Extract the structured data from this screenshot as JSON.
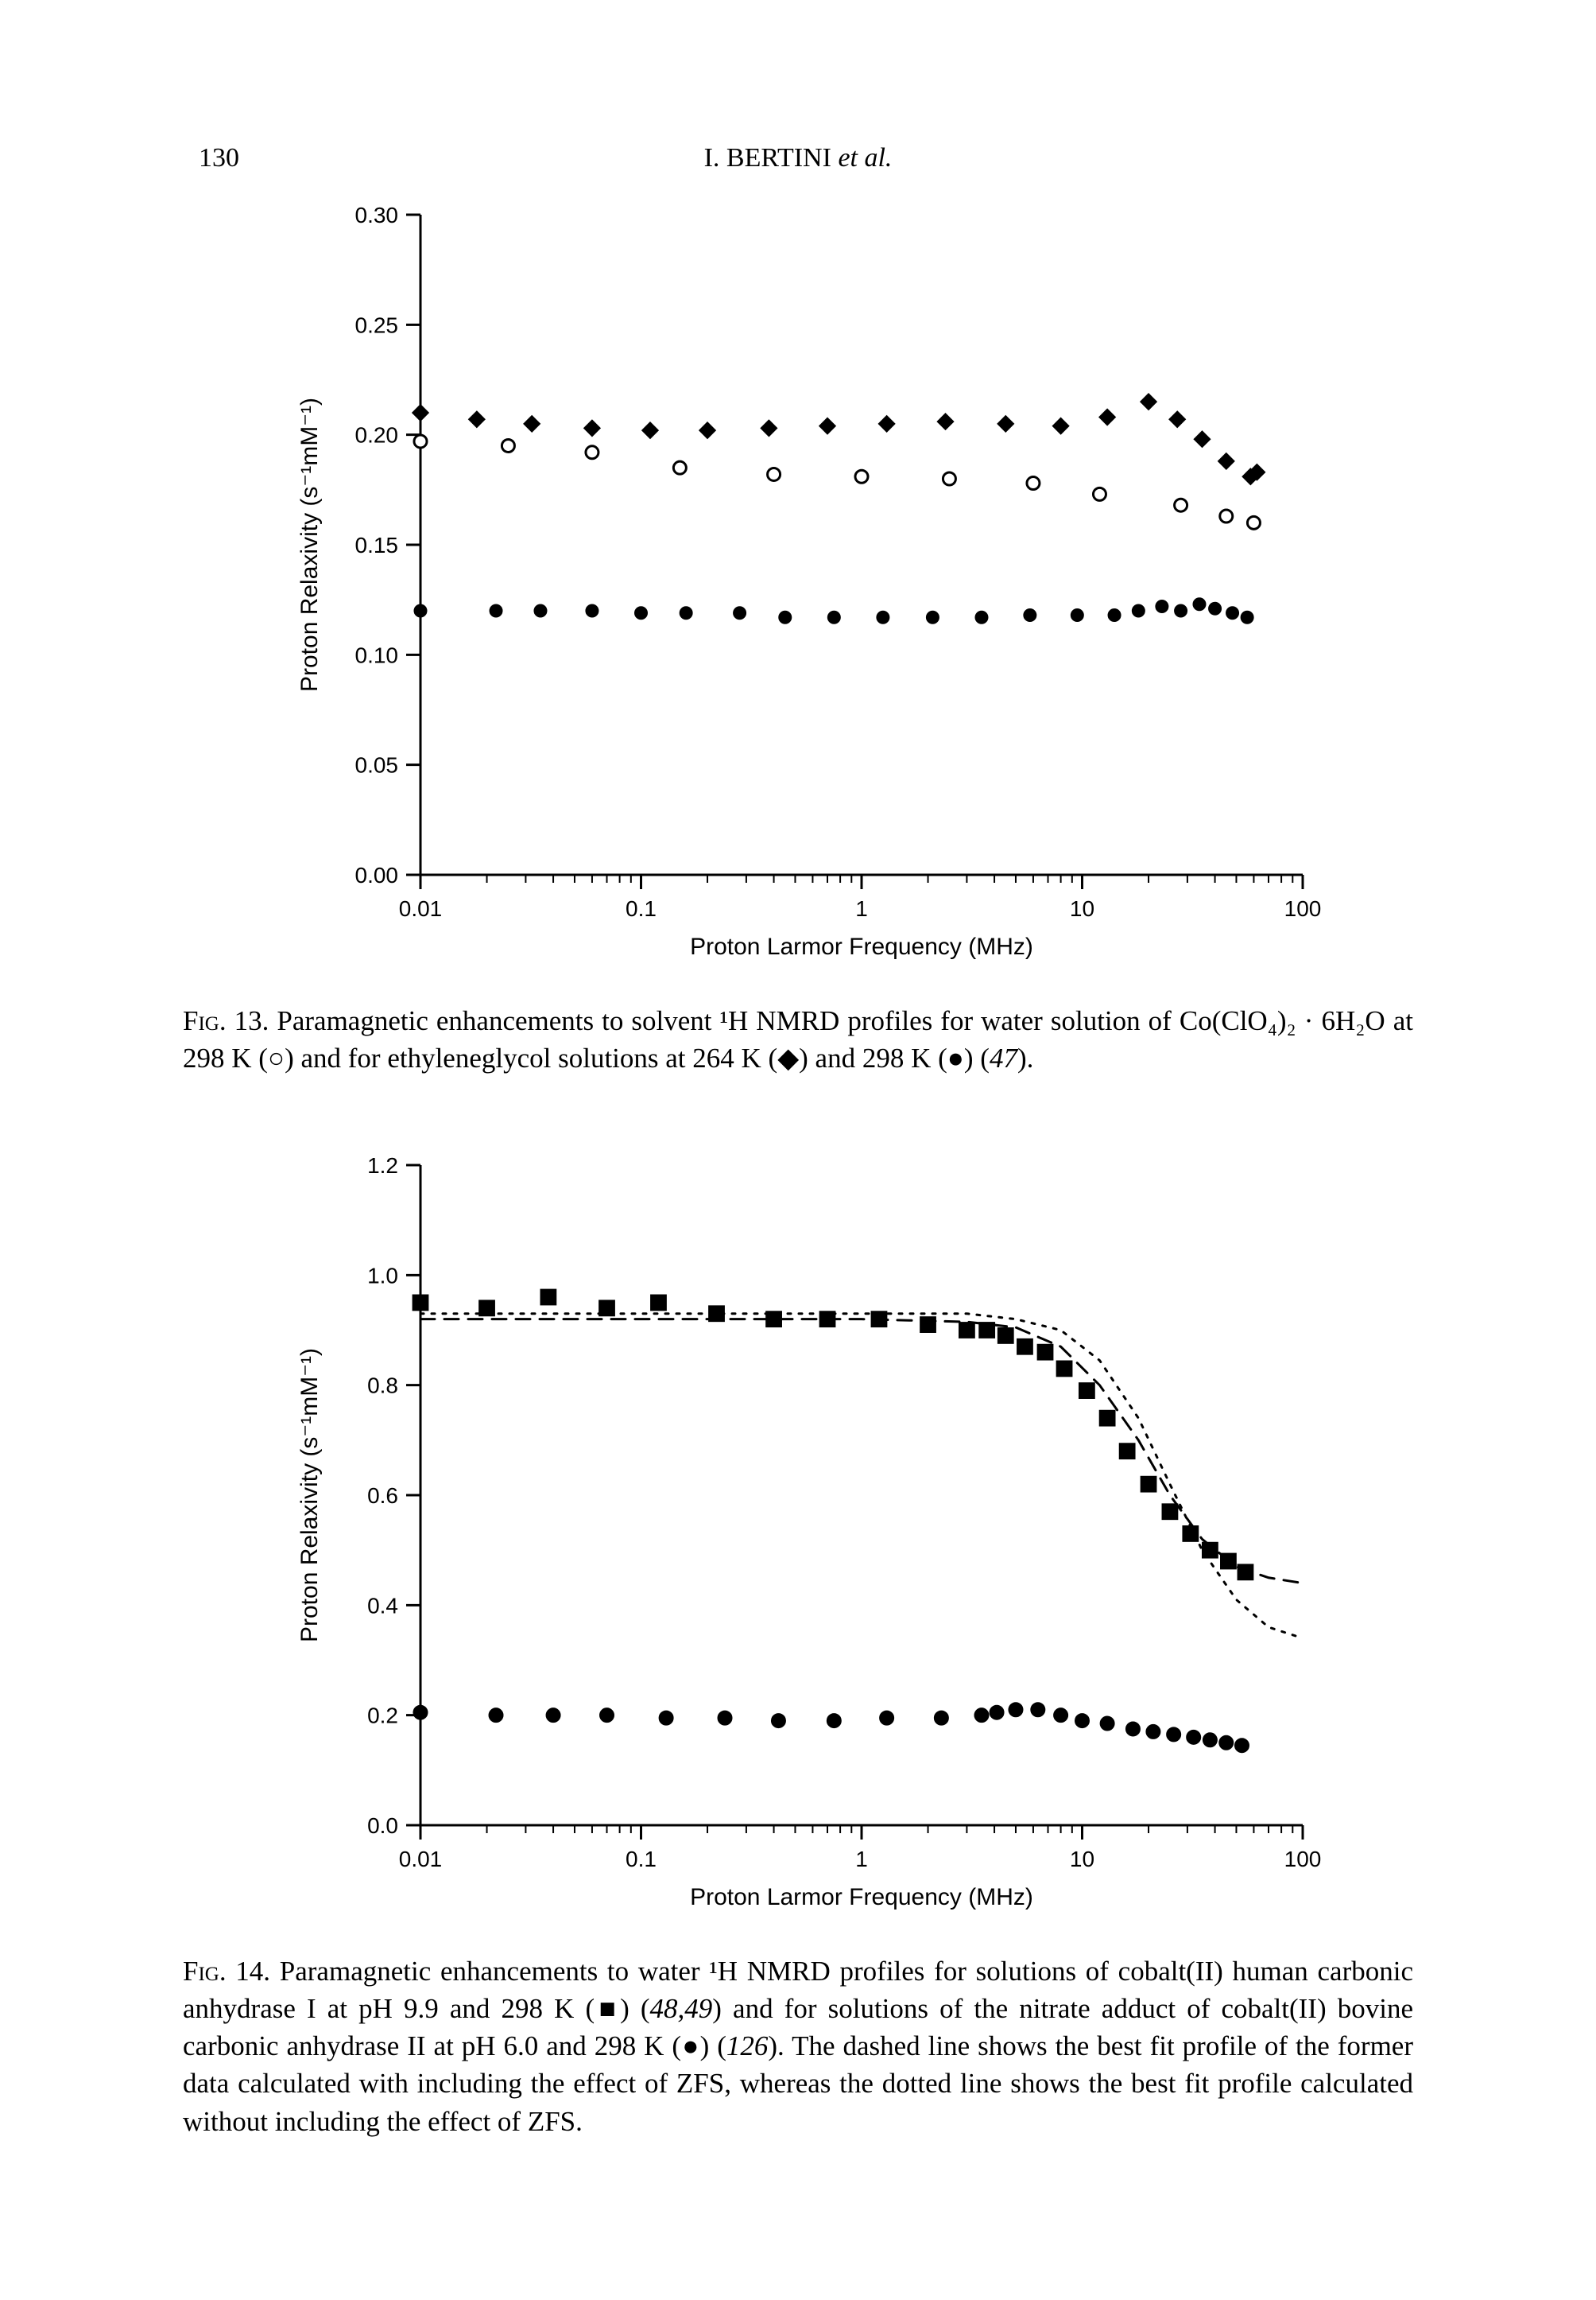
{
  "page": {
    "number": "130",
    "running_head_author": "I. BERTINI",
    "running_head_tail": "et al."
  },
  "fig13": {
    "type": "scatter",
    "xlabel": "Proton Larmor Frequency (MHz)",
    "ylabel": "Proton Relaxivity (s⁻¹mM⁻¹)",
    "xscale": "log",
    "xlim": [
      0.01,
      100
    ],
    "xticks": [
      0.01,
      0.1,
      1,
      10,
      100
    ],
    "xtick_labels": [
      "0.01",
      "0.1",
      "1",
      "10",
      "100"
    ],
    "ylim": [
      0.0,
      0.3
    ],
    "yticks": [
      0.0,
      0.05,
      0.1,
      0.15,
      0.2,
      0.25,
      0.3
    ],
    "ytick_labels": [
      "0.00",
      "0.05",
      "0.10",
      "0.15",
      "0.20",
      "0.25",
      "0.30"
    ],
    "axis_fontsize_pt": 30,
    "tick_fontsize_pt": 28,
    "line_width": 3,
    "marker_size": 8,
    "background_color": "#ffffff",
    "axis_color": "#000000",
    "series": {
      "open_circle": {
        "marker": "open-circle",
        "color": "#000000",
        "fill": "#ffffff",
        "data": [
          [
            0.01,
            0.197
          ],
          [
            0.025,
            0.195
          ],
          [
            0.06,
            0.192
          ],
          [
            0.15,
            0.185
          ],
          [
            0.4,
            0.182
          ],
          [
            1.0,
            0.181
          ],
          [
            2.5,
            0.18
          ],
          [
            6.0,
            0.178
          ],
          [
            12.0,
            0.173
          ],
          [
            28.0,
            0.168
          ],
          [
            45.0,
            0.163
          ],
          [
            60.0,
            0.16
          ]
        ]
      },
      "diamond": {
        "marker": "filled-diamond",
        "color": "#000000",
        "fill": "#000000",
        "data": [
          [
            0.01,
            0.21
          ],
          [
            0.018,
            0.207
          ],
          [
            0.032,
            0.205
          ],
          [
            0.06,
            0.203
          ],
          [
            0.11,
            0.202
          ],
          [
            0.2,
            0.202
          ],
          [
            0.38,
            0.203
          ],
          [
            0.7,
            0.204
          ],
          [
            1.3,
            0.205
          ],
          [
            2.4,
            0.206
          ],
          [
            4.5,
            0.205
          ],
          [
            8.0,
            0.204
          ],
          [
            13.0,
            0.208
          ],
          [
            20.0,
            0.215
          ],
          [
            27.0,
            0.207
          ],
          [
            35.0,
            0.198
          ],
          [
            45.0,
            0.188
          ],
          [
            58.0,
            0.181
          ],
          [
            62.0,
            0.183
          ]
        ]
      },
      "filled_circle": {
        "marker": "filled-circle",
        "color": "#000000",
        "fill": "#000000",
        "data": [
          [
            0.01,
            0.12
          ],
          [
            0.022,
            0.12
          ],
          [
            0.035,
            0.12
          ],
          [
            0.06,
            0.12
          ],
          [
            0.1,
            0.119
          ],
          [
            0.16,
            0.119
          ],
          [
            0.28,
            0.119
          ],
          [
            0.45,
            0.117
          ],
          [
            0.75,
            0.117
          ],
          [
            1.25,
            0.117
          ],
          [
            2.1,
            0.117
          ],
          [
            3.5,
            0.117
          ],
          [
            5.8,
            0.118
          ],
          [
            9.5,
            0.118
          ],
          [
            14.0,
            0.118
          ],
          [
            18.0,
            0.12
          ],
          [
            23.0,
            0.122
          ],
          [
            28.0,
            0.12
          ],
          [
            34.0,
            0.123
          ],
          [
            40.0,
            0.121
          ],
          [
            48.0,
            0.119
          ],
          [
            56.0,
            0.117
          ]
        ]
      }
    },
    "caption_parts": {
      "label": "Fig. 13.",
      "body": " Paramagnetic enhancements to solvent ¹H NMRD profiles for water solution of Co(ClO₄)₂ · 6H₂O at 298 K (○) and for ethyleneglycol solutions at 264 K (◆) and 298 K (●) (",
      "ref": "47",
      "tail": ")."
    }
  },
  "fig14": {
    "type": "scatter+line",
    "xlabel": "Proton Larmor Frequency (MHz)",
    "ylabel": "Proton Relaxivity (s⁻¹mM⁻¹)",
    "xscale": "log",
    "xlim": [
      0.01,
      100
    ],
    "xticks": [
      0.01,
      0.1,
      1,
      10,
      100
    ],
    "xtick_labels": [
      "0.01",
      "0.1",
      "1",
      "10",
      "100"
    ],
    "ylim": [
      0.0,
      1.2
    ],
    "yticks": [
      0.0,
      0.2,
      0.4,
      0.6,
      0.8,
      1.0,
      1.2
    ],
    "ytick_labels": [
      "0.0",
      "0.2",
      "0.4",
      "0.6",
      "0.8",
      "1.0",
      "1.2"
    ],
    "axis_fontsize_pt": 30,
    "tick_fontsize_pt": 28,
    "line_width": 3,
    "marker_size": 9,
    "background_color": "#ffffff",
    "axis_color": "#000000",
    "series": {
      "square": {
        "marker": "filled-square",
        "color": "#000000",
        "fill": "#000000",
        "data": [
          [
            0.01,
            0.95
          ],
          [
            0.02,
            0.94
          ],
          [
            0.038,
            0.96
          ],
          [
            0.07,
            0.94
          ],
          [
            0.12,
            0.95
          ],
          [
            0.22,
            0.93
          ],
          [
            0.4,
            0.92
          ],
          [
            0.7,
            0.92
          ],
          [
            1.2,
            0.92
          ],
          [
            2.0,
            0.91
          ],
          [
            3.0,
            0.9
          ],
          [
            3.7,
            0.9
          ],
          [
            4.5,
            0.89
          ],
          [
            5.5,
            0.87
          ],
          [
            6.8,
            0.86
          ],
          [
            8.3,
            0.83
          ],
          [
            10.5,
            0.79
          ],
          [
            13.0,
            0.74
          ],
          [
            16.0,
            0.68
          ],
          [
            20.0,
            0.62
          ],
          [
            25.0,
            0.57
          ],
          [
            31.0,
            0.53
          ],
          [
            38.0,
            0.5
          ],
          [
            46.0,
            0.48
          ],
          [
            55.0,
            0.46
          ]
        ]
      },
      "filled_circle": {
        "marker": "filled-circle",
        "color": "#000000",
        "fill": "#000000",
        "data": [
          [
            0.01,
            0.205
          ],
          [
            0.022,
            0.2
          ],
          [
            0.04,
            0.2
          ],
          [
            0.07,
            0.2
          ],
          [
            0.13,
            0.195
          ],
          [
            0.24,
            0.195
          ],
          [
            0.42,
            0.19
          ],
          [
            0.75,
            0.19
          ],
          [
            1.3,
            0.195
          ],
          [
            2.3,
            0.195
          ],
          [
            3.5,
            0.2
          ],
          [
            4.1,
            0.205
          ],
          [
            5.0,
            0.21
          ],
          [
            6.3,
            0.21
          ],
          [
            8.0,
            0.2
          ],
          [
            10.0,
            0.19
          ],
          [
            13.0,
            0.185
          ],
          [
            17.0,
            0.175
          ],
          [
            21.0,
            0.17
          ],
          [
            26.0,
            0.165
          ],
          [
            32.0,
            0.16
          ],
          [
            38.0,
            0.155
          ],
          [
            45.0,
            0.15
          ],
          [
            53.0,
            0.145
          ]
        ]
      }
    },
    "fit_lines": {
      "dashed": {
        "style": "dashed",
        "color": "#000000",
        "width": 3,
        "data": [
          [
            0.01,
            0.92
          ],
          [
            0.1,
            0.92
          ],
          [
            1.0,
            0.92
          ],
          [
            3.0,
            0.915
          ],
          [
            5.0,
            0.905
          ],
          [
            8.0,
            0.87
          ],
          [
            12.0,
            0.8
          ],
          [
            18.0,
            0.7
          ],
          [
            25.0,
            0.6
          ],
          [
            35.0,
            0.52
          ],
          [
            50.0,
            0.47
          ],
          [
            70.0,
            0.45
          ],
          [
            100.0,
            0.44
          ]
        ]
      },
      "dotted": {
        "style": "dotted",
        "color": "#000000",
        "width": 3,
        "data": [
          [
            0.01,
            0.93
          ],
          [
            0.1,
            0.93
          ],
          [
            1.0,
            0.93
          ],
          [
            3.0,
            0.93
          ],
          [
            5.0,
            0.92
          ],
          [
            8.0,
            0.9
          ],
          [
            12.0,
            0.845
          ],
          [
            18.0,
            0.74
          ],
          [
            25.0,
            0.62
          ],
          [
            35.0,
            0.5
          ],
          [
            50.0,
            0.41
          ],
          [
            70.0,
            0.36
          ],
          [
            100.0,
            0.34
          ]
        ]
      }
    },
    "caption_parts": {
      "label": "Fig. 14.",
      "body1": " Paramagnetic enhancements to water ¹H NMRD profiles for solutions of cobalt(II) human carbonic anhydrase I at pH 9.9 and 298 K (■) (",
      "ref1": "48,49",
      "body2": ") and for solutions of the nitrate adduct of cobalt(II) bovine carbonic anhydrase II at pH 6.0 and 298 K (●) (",
      "ref2": "126",
      "body3": "). The dashed line shows the best fit profile of the former data calculated with including the effect of ZFS, whereas the dotted line shows the best fit profile calculated without including the effect of ZFS."
    }
  }
}
